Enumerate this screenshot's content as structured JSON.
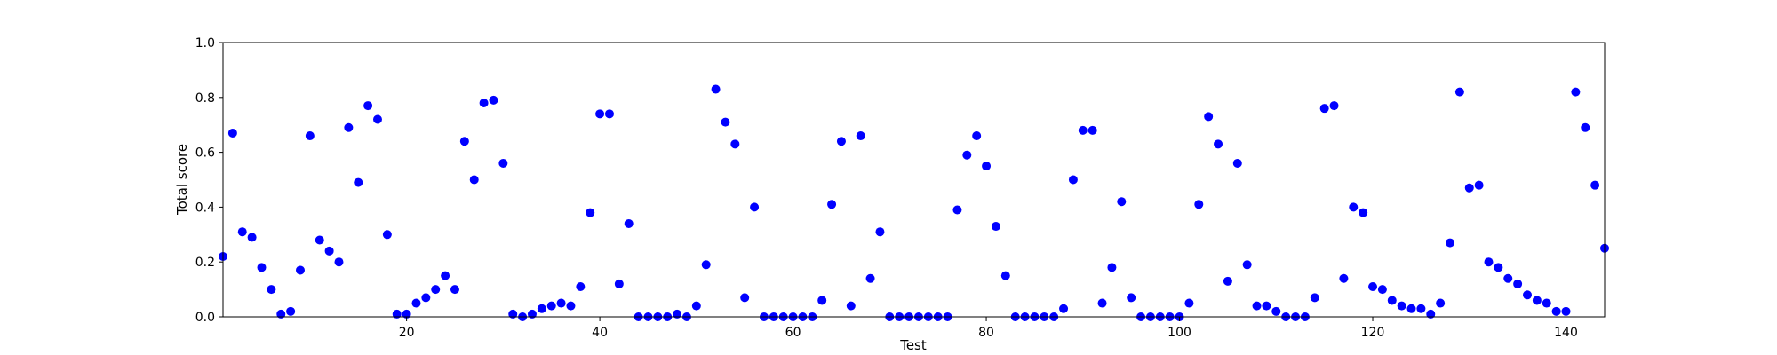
{
  "chart_data": {
    "type": "scatter",
    "title": "",
    "xlabel": "Test",
    "ylabel": "Total score",
    "xlim": [
      1,
      144
    ],
    "ylim": [
      0.0,
      1.0
    ],
    "xticks": [
      20,
      40,
      60,
      80,
      100,
      120,
      140
    ],
    "xtick_labels": [
      "20",
      "40",
      "60",
      "80",
      "100",
      "120",
      "140"
    ],
    "yticks": [
      0.0,
      0.2,
      0.4,
      0.6,
      0.8,
      1.0
    ],
    "ytick_labels": [
      "0.0",
      "0.2",
      "0.4",
      "0.6",
      "0.8",
      "1.0"
    ],
    "grid": false,
    "marker_color": "#0000ff",
    "series": [
      {
        "x": [
          1,
          2,
          3,
          4,
          5,
          6,
          7,
          8,
          9,
          10,
          11,
          12,
          13,
          14,
          15,
          16,
          17,
          18,
          19,
          20,
          21,
          22,
          23,
          24,
          25,
          26,
          27,
          28,
          29,
          30,
          31,
          32,
          33,
          34,
          35,
          36,
          37,
          38,
          39,
          40,
          41,
          42,
          43,
          44,
          45,
          46,
          47,
          48,
          49,
          50,
          51,
          52,
          53,
          54,
          55,
          56,
          57,
          58,
          59,
          60,
          61,
          62,
          63,
          64,
          65,
          66,
          67,
          68,
          69,
          70,
          71,
          72,
          73,
          74,
          75,
          76,
          77,
          78,
          79,
          80,
          81,
          82,
          83,
          84,
          85,
          86,
          87,
          88,
          89,
          90,
          91,
          92,
          93,
          94,
          95,
          96,
          97,
          98,
          99,
          100,
          101,
          102,
          103,
          104,
          105,
          106,
          107,
          108,
          109,
          110,
          111,
          112,
          113,
          114,
          115,
          116,
          117,
          118,
          119,
          120,
          121,
          122,
          123,
          124,
          125,
          126,
          127,
          128,
          129,
          130,
          131,
          132,
          133,
          134,
          135,
          136,
          137,
          138,
          139,
          140,
          141,
          142,
          143,
          144
        ],
        "y": [
          0.22,
          0.67,
          0.31,
          0.29,
          0.18,
          0.1,
          0.01,
          0.02,
          0.17,
          0.66,
          0.28,
          0.24,
          0.2,
          0.69,
          0.49,
          0.77,
          0.72,
          0.3,
          0.01,
          0.01,
          0.05,
          0.07,
          0.1,
          0.15,
          0.1,
          0.64,
          0.5,
          0.78,
          0.79,
          0.56,
          0.01,
          0.0,
          0.01,
          0.03,
          0.04,
          0.05,
          0.04,
          0.11,
          0.38,
          0.74,
          0.74,
          0.12,
          0.34,
          0.0,
          0.0,
          0.0,
          0.0,
          0.01,
          0.0,
          0.04,
          0.19,
          0.83,
          0.71,
          0.63,
          0.07,
          0.4,
          0.0,
          0.0,
          0.0,
          0.0,
          0.0,
          0.0,
          0.06,
          0.41,
          0.64,
          0.04,
          0.66,
          0.14,
          0.31,
          0.0,
          0.0,
          0.0,
          0.0,
          0.0,
          0.0,
          0.0,
          0.39,
          0.59,
          0.66,
          0.55,
          0.33,
          0.15,
          0.0,
          0.0,
          0.0,
          0.0,
          0.0,
          0.03,
          0.5,
          0.68,
          0.68,
          0.05,
          0.18,
          0.42,
          0.07,
          0.0,
          0.0,
          0.0,
          0.0,
          0.0,
          0.05,
          0.41,
          0.73,
          0.63,
          0.13,
          0.56,
          0.19,
          0.04,
          0.04,
          0.02,
          0.0,
          0.0,
          0.0,
          0.07,
          0.76,
          0.77,
          0.14,
          0.4,
          0.38,
          0.11,
          0.1,
          0.06,
          0.04,
          0.03,
          0.03,
          0.01,
          0.05,
          0.27,
          0.82,
          0.47,
          0.48,
          0.2,
          0.18,
          0.14,
          0.12,
          0.08,
          0.06,
          0.05,
          0.02,
          0.02,
          0.82,
          0.69,
          0.48,
          0.25
        ]
      }
    ]
  }
}
